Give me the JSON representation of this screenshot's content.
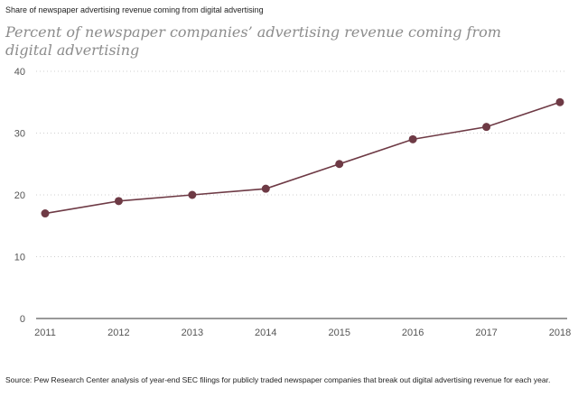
{
  "header": {
    "top_label": "Share of newspaper advertising revenue coming from digital advertising"
  },
  "footer": {
    "source": "Source: Pew Research Center analysis of year-end SEC filings for publicly traded newspaper companies that break out digital advertising revenue for each year."
  },
  "colors": {
    "line": "#6e3a45",
    "marker": "#6e3a45",
    "grid": "#cfcfcf",
    "axis": "#333333"
  },
  "chart_data": {
    "type": "line",
    "title": "Percent of newspaper companies’ advertising revenue coming from digital advertising",
    "xlabel": "",
    "ylabel": "",
    "categories": [
      "2011",
      "2012",
      "2013",
      "2014",
      "2015",
      "2016",
      "2017",
      "2018"
    ],
    "series": [
      {
        "values": [
          17,
          19,
          20,
          21,
          25,
          29,
          31,
          35
        ]
      }
    ],
    "ylim": [
      0,
      40
    ],
    "yticks": [
      0,
      10,
      20,
      30,
      40
    ],
    "grid": "horizontal dotted",
    "legend": "none"
  }
}
